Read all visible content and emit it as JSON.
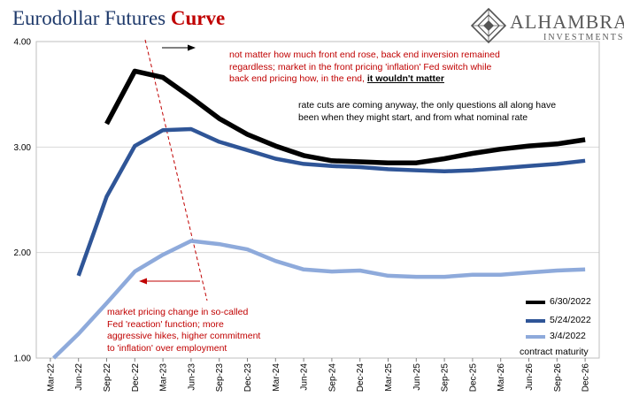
{
  "title": {
    "main": "Eurodollar Futures",
    "accent": "Curve"
  },
  "logo": {
    "name": "ALHAMBRA",
    "sub": "INVESTMENTS"
  },
  "annotations": {
    "top_red": {
      "line1": "not matter how much front end rose, back end inversion remained",
      "line2": "regardless; market in the front pricing 'inflation' Fed switch while",
      "line3_pre": "back end pricing how, in the end,",
      "line3_emph": "it wouldn't matter"
    },
    "black": {
      "line1": "rate cuts are coming anyway, the only questions all along have",
      "line2": "been when they might start, and from what nominal rate"
    },
    "bottom_red": {
      "line1": "market pricing change in so-called",
      "line2": "Fed 'reaction' function; more",
      "line3": "aggressive hikes, higher commitment",
      "line4": "to 'inflation' over employment"
    }
  },
  "x_axis_title": "contract maturity",
  "colors": {
    "series_6_30": "#000000",
    "series_5_24": "#2f5597",
    "series_3_4": "#8eaadb",
    "annotation_red": "#c00000",
    "title_blue": "#1f3a6b"
  },
  "chart_data": {
    "type": "line",
    "title": "Eurodollar Futures Curve",
    "xlabel": "contract maturity",
    "ylabel": "",
    "ylim": [
      1.0,
      4.0
    ],
    "y_ticks": [
      "1.00",
      "2.00",
      "3.00",
      "4.00"
    ],
    "categories": [
      "Mar-22",
      "Jun-22",
      "Sep-22",
      "Dec-22",
      "Mar-23",
      "Jun-23",
      "Sep-23",
      "Dec-23",
      "Mar-24",
      "Jun-24",
      "Sep-24",
      "Dec-24",
      "Mar-25",
      "Jun-25",
      "Sep-25",
      "Dec-25",
      "Mar-26",
      "Jun-26",
      "Sep-26",
      "Dec-26"
    ],
    "series": [
      {
        "name": "6/30/2022",
        "color": "#000000",
        "values": [
          null,
          null,
          3.22,
          3.72,
          3.66,
          3.47,
          3.27,
          3.12,
          3.01,
          2.92,
          2.87,
          2.86,
          2.85,
          2.85,
          2.89,
          2.94,
          2.98,
          3.01,
          3.03,
          3.07
        ]
      },
      {
        "name": "5/24/2022",
        "color": "#2f5597",
        "values": [
          null,
          1.78,
          2.53,
          3.01,
          3.16,
          3.17,
          3.05,
          2.97,
          2.89,
          2.84,
          2.82,
          2.81,
          2.79,
          2.78,
          2.77,
          2.78,
          2.8,
          2.82,
          2.84,
          2.87
        ]
      },
      {
        "name": "3/4/2022",
        "color": "#8eaadb",
        "values": [
          0.97,
          1.23,
          1.52,
          1.82,
          1.98,
          2.11,
          2.08,
          2.03,
          1.92,
          1.84,
          1.82,
          1.83,
          1.78,
          1.77,
          1.77,
          1.79,
          1.79,
          1.81,
          1.83,
          1.84
        ]
      }
    ],
    "legend_position": "bottom-right"
  }
}
